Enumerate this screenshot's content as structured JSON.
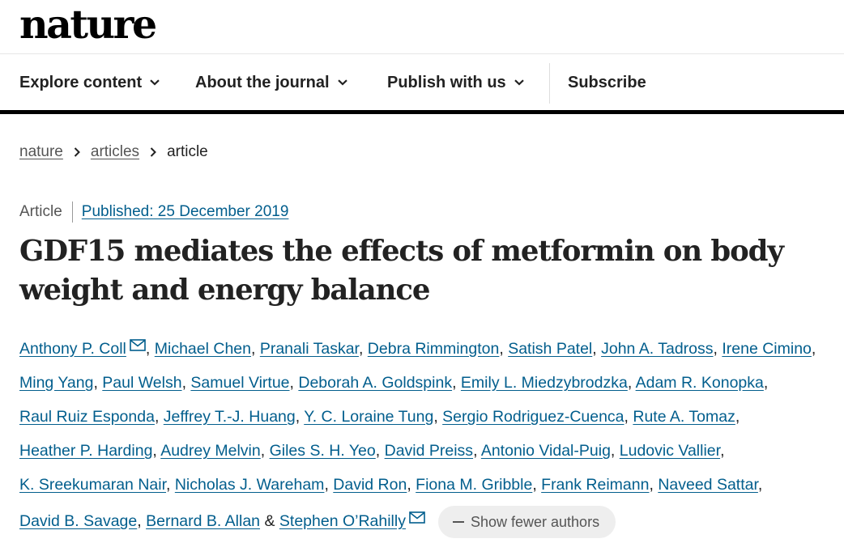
{
  "site": {
    "logo": "nature"
  },
  "nav": {
    "items": [
      {
        "label": "Explore content",
        "has_dropdown": true,
        "icon": "chevron-down-icon"
      },
      {
        "label": "About the journal",
        "has_dropdown": true,
        "icon": "chevron-down-icon"
      },
      {
        "label": "Publish with us",
        "has_dropdown": true,
        "icon": "chevron-down-icon"
      },
      {
        "label": "Subscribe",
        "has_dropdown": false
      }
    ]
  },
  "breadcrumb": {
    "items": [
      "nature",
      "articles"
    ],
    "current": "article",
    "separator_icon": "chevron-right-icon"
  },
  "article": {
    "type": "Article",
    "published": "Published: 25 December 2019",
    "title": "GDF15 mediates the effects of metformin on body weight and energy balance",
    "authors": [
      {
        "name": "Anthony P. Coll",
        "email_icon": true
      },
      {
        "name": "Michael Chen"
      },
      {
        "name": "Pranali Taskar"
      },
      {
        "name": "Debra Rimmington"
      },
      {
        "name": "Satish Patel"
      },
      {
        "name": "John A. Tadross"
      },
      {
        "name": "Irene Cimino"
      },
      {
        "name": "Ming Yang"
      },
      {
        "name": "Paul Welsh"
      },
      {
        "name": "Samuel Virtue"
      },
      {
        "name": "Deborah A. Goldspink"
      },
      {
        "name": "Emily L. Miedzybrodzka"
      },
      {
        "name": "Adam R. Konopka"
      },
      {
        "name": "Raul Ruiz Esponda"
      },
      {
        "name": "Jeffrey T.-J. Huang"
      },
      {
        "name": "Y. C. Loraine Tung"
      },
      {
        "name": "Sergio Rodriguez-Cuenca"
      },
      {
        "name": "Rute A. Tomaz"
      },
      {
        "name": "Heather P. Harding"
      },
      {
        "name": "Audrey Melvin"
      },
      {
        "name": "Giles S. H. Yeo"
      },
      {
        "name": "David Preiss"
      },
      {
        "name": "Antonio Vidal-Puig"
      },
      {
        "name": "Ludovic Vallier"
      },
      {
        "name": "K. Sreekumaran Nair"
      },
      {
        "name": "Nicholas J. Wareham"
      },
      {
        "name": "David Ron"
      },
      {
        "name": "Fiona M. Gribble"
      },
      {
        "name": "Frank Reimann"
      },
      {
        "name": "Naveed Sattar"
      },
      {
        "name": "David B. Savage"
      },
      {
        "name": "Bernard B. Allan"
      },
      {
        "name": "Stephen O’Rahilly",
        "email_icon": true
      }
    ],
    "last_separator": "&",
    "show_fewer_label": "Show fewer authors",
    "show_fewer_icon": "minus-icon"
  },
  "colors": {
    "link": "#025e8d",
    "text": "#222222",
    "muted": "#555555",
    "pill_bg": "#eeeeee"
  }
}
